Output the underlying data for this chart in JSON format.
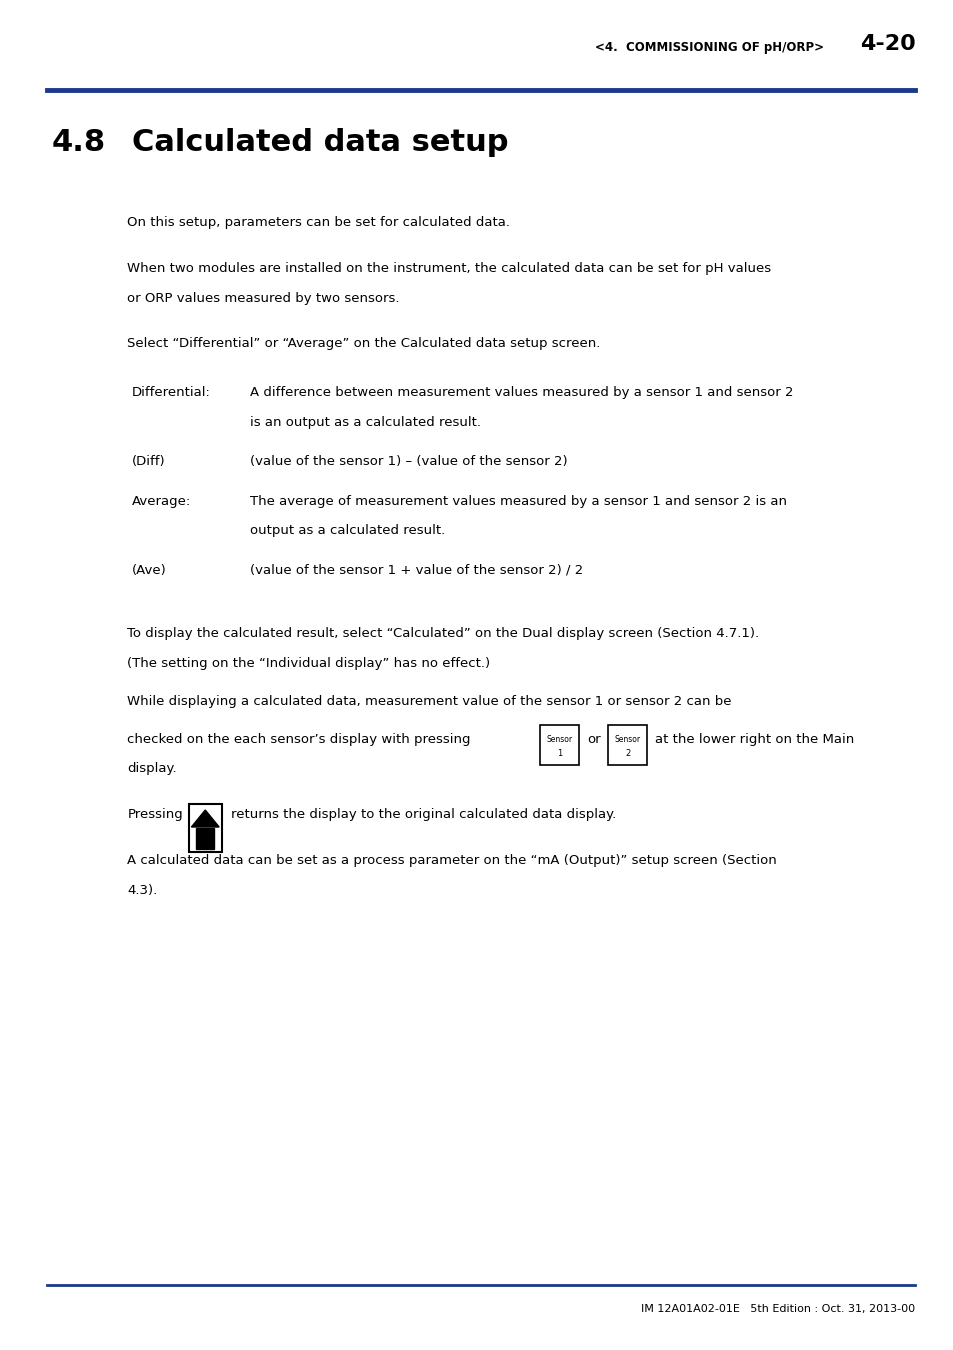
{
  "header_text": "<4.  COMMISSIONING OF pH/ORP>",
  "header_page": "4-20",
  "header_line_color": "#1a3a8a",
  "section_number": "4.8",
  "section_title": "Calculated data setup",
  "paragraphs": [
    "On this setup, parameters can be set for calculated data.",
    "When two modules are installed on the instrument, the calculated data can be set for pH values\nor ORP values measured by two sensors.",
    "Select “Differential” or “Average” on the Calculated data setup screen."
  ],
  "definitions": [
    {
      "term": "Differential:",
      "lines": [
        "A difference between measurement values measured by a sensor 1 and sensor 2",
        "is an output as a calculated result."
      ]
    },
    {
      "term": "(Diff)",
      "lines": [
        "(value of the sensor 1) – (value of the sensor 2)"
      ]
    },
    {
      "term": "Average:",
      "lines": [
        "The average of measurement values measured by a sensor 1 and sensor 2 is an",
        "output as a calculated result."
      ]
    },
    {
      "term": "(Ave)",
      "lines": [
        "(value of the sensor 1 + value of the sensor 2) / 2"
      ]
    }
  ],
  "paragraphs2": [
    "To display the calculated result, select “Calculated” on the Dual display screen (Section 4.7.1).\n(The setting on the “Individual display” has no effect.)",
    "While displaying a calculated data, measurement value of the sensor 1 or sensor 2 can be"
  ],
  "sensor_line": "checked on the each sensor’s display with pressing",
  "sensor_line2": "or",
  "sensor_line3": "at the lower right on the Main",
  "sensor_line4": "display.",
  "home_line_prefix": "Pressing",
  "home_line": "returns the display to the original calculated data display.",
  "paragraph_last": "A calculated data can be set as a process parameter on the “mA (Output)” setup screen (Section\n4.3).",
  "footer_text": "IM 12A01A02-01E   5th Edition : Oct. 31, 2013-00",
  "footer_line_color": "#1a3a8a",
  "bg_color": "#ffffff",
  "text_color": "#000000",
  "font_size_body": 9.5,
  "font_size_header": 8.5,
  "font_size_section_num": 22,
  "font_size_section_title": 22,
  "font_size_footer": 8
}
